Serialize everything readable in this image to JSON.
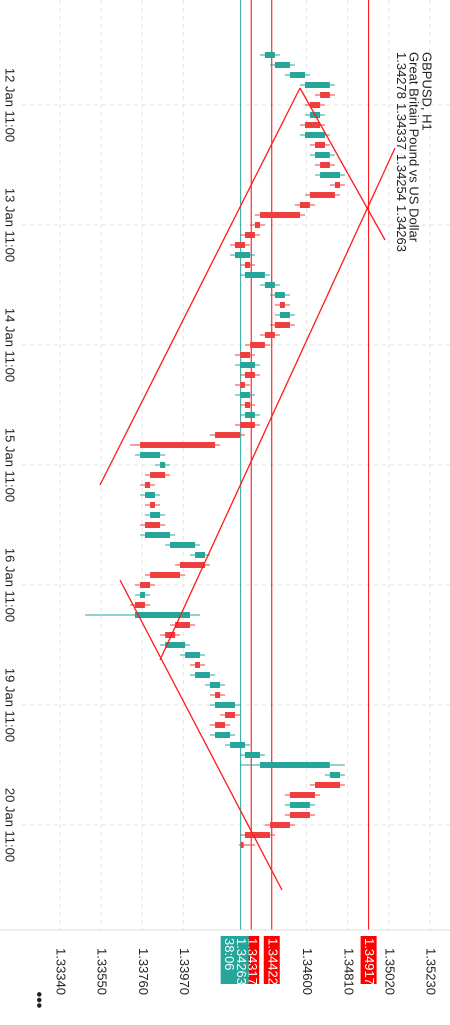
{
  "chart_data": {
    "type": "candlestick",
    "symbol": "GBPUSD, H1",
    "description": "Great Britain Pound vs US Dollar",
    "last_quote": [
      1.34278,
      1.34337,
      1.34254,
      1.34263
    ],
    "up_color": "#26a69a",
    "down_color": "#ef3e3e",
    "categories": [
      null,
      null,
      null,
      null,
      null,
      "12 Jan 11:00",
      null,
      null,
      null,
      null,
      null,
      null,
      null,
      null,
      null,
      null,
      null,
      "13 Jan 11:00",
      null,
      null,
      null,
      null,
      null,
      null,
      null,
      null,
      null,
      null,
      null,
      "14 Jan 11:00",
      null,
      null,
      null,
      null,
      null,
      null,
      null,
      null,
      null,
      null,
      null,
      "15 Jan 11:00",
      null,
      null,
      null,
      null,
      null,
      null,
      null,
      null,
      null,
      null,
      null,
      "16 Jan 11:00",
      null,
      null,
      null,
      null,
      null,
      null,
      null,
      null,
      null,
      null,
      null,
      "19 Jan 11:00",
      null,
      null,
      null,
      null,
      null,
      null,
      null,
      null,
      null,
      null,
      null,
      "20 Jan 11:00",
      null,
      null
    ],
    "ohlc": [
      [
        1.34387,
        1.34464,
        1.34362,
        1.34438
      ],
      [
        1.34438,
        1.3454,
        1.34413,
        1.34515
      ],
      [
        1.34515,
        1.34617,
        1.34489,
        1.34592
      ],
      [
        1.34592,
        1.34745,
        1.34566,
        1.34719
      ],
      [
        1.34719,
        1.34745,
        1.34643,
        1.34669
      ],
      [
        1.34669,
        1.34694,
        1.34592,
        1.34617
      ],
      [
        1.34617,
        1.34694,
        1.34592,
        1.34669
      ],
      [
        1.34669,
        1.34694,
        1.34566,
        1.34592
      ],
      [
        1.34592,
        1.34719,
        1.34566,
        1.34694
      ],
      [
        1.34694,
        1.34719,
        1.34617,
        1.34643
      ],
      [
        1.34643,
        1.34745,
        1.34617,
        1.34719
      ],
      [
        1.34719,
        1.34745,
        1.34643,
        1.34669
      ],
      [
        1.34669,
        1.34796,
        1.34643,
        1.34771
      ],
      [
        1.34771,
        1.34796,
        1.34719,
        1.34745
      ],
      [
        1.34745,
        1.34771,
        1.34592,
        1.34617
      ],
      [
        1.34617,
        1.34643,
        1.3454,
        1.34566
      ],
      [
        1.34566,
        1.34592,
        1.34336,
        1.34362
      ],
      [
        1.34362,
        1.34387,
        1.34311,
        1.34336
      ],
      [
        1.34336,
        1.34362,
        1.3426,
        1.34285
      ],
      [
        1.34285,
        1.34311,
        1.34209,
        1.34234
      ],
      [
        1.34234,
        1.34336,
        1.34209,
        1.34311
      ],
      [
        1.34311,
        1.34336,
        1.3426,
        1.34285
      ],
      [
        1.34285,
        1.34413,
        1.3426,
        1.34387
      ],
      [
        1.34387,
        1.34464,
        1.34362,
        1.34438
      ],
      [
        1.34438,
        1.34515,
        1.34413,
        1.34489
      ],
      [
        1.34489,
        1.34515,
        1.34438,
        1.34464
      ],
      [
        1.34464,
        1.3454,
        1.34438,
        1.34515
      ],
      [
        1.34515,
        1.3454,
        1.34413,
        1.34438
      ],
      [
        1.34438,
        1.34464,
        1.34362,
        1.34387
      ],
      [
        1.34387,
        1.34413,
        1.34285,
        1.34311
      ],
      [
        1.34311,
        1.34336,
        1.34234,
        1.3426
      ],
      [
        1.3426,
        1.34362,
        1.34234,
        1.34336
      ],
      [
        1.34336,
        1.34362,
        1.3426,
        1.34285
      ],
      [
        1.34285,
        1.34311,
        1.34234,
        1.3426
      ],
      [
        1.3426,
        1.34336,
        1.34234,
        1.34311
      ],
      [
        1.34311,
        1.34336,
        1.3426,
        1.34285
      ],
      [
        1.34285,
        1.34362,
        1.3426,
        1.34336
      ],
      [
        1.34336,
        1.34362,
        1.34234,
        1.3426
      ],
      [
        1.3426,
        1.34285,
        1.34106,
        1.34132
      ],
      [
        1.34132,
        1.34158,
        1.33698,
        1.33749
      ],
      [
        1.33749,
        1.33877,
        1.33723,
        1.33851
      ],
      [
        1.33851,
        1.33902,
        1.33825,
        1.33877
      ],
      [
        1.33877,
        1.33902,
        1.33774,
        1.338
      ],
      [
        1.338,
        1.33825,
        1.33749,
        1.33774
      ],
      [
        1.33774,
        1.33851,
        1.33749,
        1.33825
      ],
      [
        1.33825,
        1.33851,
        1.33774,
        1.338
      ],
      [
        1.338,
        1.33877,
        1.33774,
        1.33851
      ],
      [
        1.33851,
        1.33877,
        1.33749,
        1.33774
      ],
      [
        1.33774,
        1.33928,
        1.33749,
        1.33902
      ],
      [
        1.33902,
        1.34055,
        1.33877,
        1.3403
      ],
      [
        1.3403,
        1.34106,
        1.34004,
        1.34081
      ],
      [
        1.34081,
        1.34106,
        1.33928,
        1.33953
      ],
      [
        1.33953,
        1.33979,
        1.33774,
        1.338
      ],
      [
        1.338,
        1.33825,
        1.33723,
        1.33749
      ],
      [
        1.33749,
        1.338,
        1.33723,
        1.33774
      ],
      [
        1.33774,
        1.338,
        1.33698,
        1.33723
      ],
      [
        1.33723,
        1.34055,
        1.33468,
        1.34004
      ],
      [
        1.34004,
        1.3403,
        1.33902,
        1.33928
      ],
      [
        1.33928,
        1.33953,
        1.33851,
        1.33877
      ],
      [
        1.33877,
        1.34004,
        1.33851,
        1.33979
      ],
      [
        1.33979,
        1.34081,
        1.33953,
        1.34055
      ],
      [
        1.34055,
        1.34081,
        1.34004,
        1.3403
      ],
      [
        1.3403,
        1.34132,
        1.34004,
        1.34106
      ],
      [
        1.34106,
        1.34183,
        1.34081,
        1.34158
      ],
      [
        1.34158,
        1.34183,
        1.34106,
        1.34132
      ],
      [
        1.34132,
        1.3426,
        1.34106,
        1.34234
      ],
      [
        1.34234,
        1.3426,
        1.34158,
        1.34183
      ],
      [
        1.34183,
        1.34209,
        1.34106,
        1.34132
      ],
      [
        1.34132,
        1.34234,
        1.34106,
        1.34209
      ],
      [
        1.34209,
        1.34311,
        1.34183,
        1.34285
      ],
      [
        1.34285,
        1.34387,
        1.3426,
        1.34362
      ],
      [
        1.34362,
        1.34796,
        1.3426,
        1.34719
      ],
      [
        1.34719,
        1.34796,
        1.34694,
        1.34771
      ],
      [
        1.34771,
        1.34796,
        1.34617,
        1.34643
      ],
      [
        1.34643,
        1.34669,
        1.34489,
        1.34515
      ],
      [
        1.34515,
        1.34643,
        1.34489,
        1.34617
      ],
      [
        1.34617,
        1.34643,
        1.34489,
        1.34515
      ],
      [
        1.34515,
        1.3454,
        1.34387,
        1.34413
      ],
      [
        1.34413,
        1.34438,
        1.3426,
        1.34285
      ],
      [
        1.34278,
        1.34337,
        1.34254,
        1.34263
      ]
    ],
    "ylim": [
      1.33033,
      1.35333
    ],
    "yticks": [
      1.3334,
      1.3355,
      1.3376,
      1.3397,
      1.346,
      1.3481,
      1.3502,
      1.3523
    ],
    "ytick_labels": [
      "1.33340",
      "1.33550",
      "1.33760",
      "1.33970",
      "1.34600",
      "1.34810",
      "1.35020",
      "1.35230"
    ],
    "grid": true,
    "levels": [
      1.34917,
      1.34422,
      1.34317
    ],
    "level_color": "#ff0000",
    "current_price": 1.34263,
    "current_color": "#26a69a",
    "timer": "38:06"
  }
}
